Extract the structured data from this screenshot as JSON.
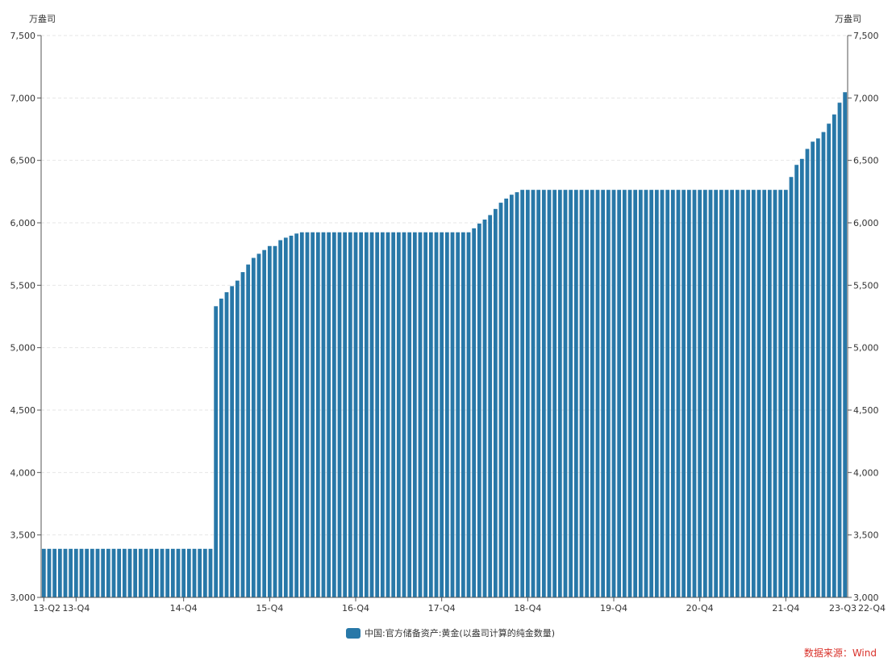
{
  "chart_data": {
    "type": "bar",
    "unit_left": "万盎司",
    "unit_right": "万盎司",
    "ylim": [
      3000,
      7500
    ],
    "y_ticks": [
      "3,000",
      "3,500",
      "4,000",
      "4,500",
      "5,000",
      "5,500",
      "6,000",
      "6,500",
      "7,000",
      "7,500"
    ],
    "y_tick_values": [
      3000,
      3500,
      4000,
      4500,
      5000,
      5500,
      6000,
      6500,
      7000,
      7500
    ],
    "x_tick_labels": [
      "13-Q2",
      "13-Q4",
      "14-Q4",
      "15-Q4",
      "16-Q4",
      "17-Q4",
      "18-Q4",
      "19-Q4",
      "20-Q4",
      "21-Q4",
      "22-Q4",
      "23-Q3"
    ],
    "x_tick_indices": [
      0,
      6,
      26,
      42,
      58,
      74,
      90,
      106,
      122,
      138,
      154,
      165
    ],
    "grid": true,
    "legend_position": "bottom",
    "series": [
      {
        "name": "中国:官方储备资产:黄金(以盎司计算的纯金数量)",
        "color": "#2878a8",
        "values": [
          3389,
          3389,
          3389,
          3389,
          3389,
          3389,
          3389,
          3389,
          3389,
          3389,
          3389,
          3389,
          3389,
          3389,
          3389,
          3389,
          3389,
          3389,
          3389,
          3389,
          3389,
          3389,
          3389,
          3389,
          3389,
          3389,
          3389,
          3389,
          3389,
          3389,
          3389,
          3389,
          5332,
          5393,
          5444,
          5493,
          5537,
          5605,
          5666,
          5719,
          5752,
          5782,
          5814,
          5814,
          5861,
          5881,
          5897,
          5914,
          5924,
          5924,
          5924,
          5924,
          5924,
          5924,
          5924,
          5924,
          5924,
          5924,
          5924,
          5924,
          5924,
          5924,
          5924,
          5924,
          5924,
          5924,
          5924,
          5924,
          5924,
          5924,
          5924,
          5924,
          5924,
          5924,
          5924,
          5924,
          5924,
          5924,
          5924,
          5924,
          5956,
          5994,
          6026,
          6062,
          6111,
          6161,
          6194,
          6225,
          6245,
          6264,
          6264,
          6264,
          6264,
          6264,
          6264,
          6264,
          6264,
          6264,
          6264,
          6264,
          6264,
          6264,
          6264,
          6264,
          6264,
          6264,
          6264,
          6264,
          6264,
          6264,
          6264,
          6264,
          6264,
          6264,
          6264,
          6264,
          6264,
          6264,
          6264,
          6264,
          6264,
          6264,
          6264,
          6264,
          6264,
          6264,
          6264,
          6264,
          6264,
          6264,
          6264,
          6264,
          6264,
          6264,
          6264,
          6264,
          6264,
          6264,
          6264,
          6367,
          6464,
          6512,
          6592,
          6650,
          6676,
          6727,
          6794,
          6868,
          6962,
          7046
        ]
      }
    ]
  },
  "source": {
    "label": "数据来源：Wind",
    "color": "#d9312a"
  }
}
